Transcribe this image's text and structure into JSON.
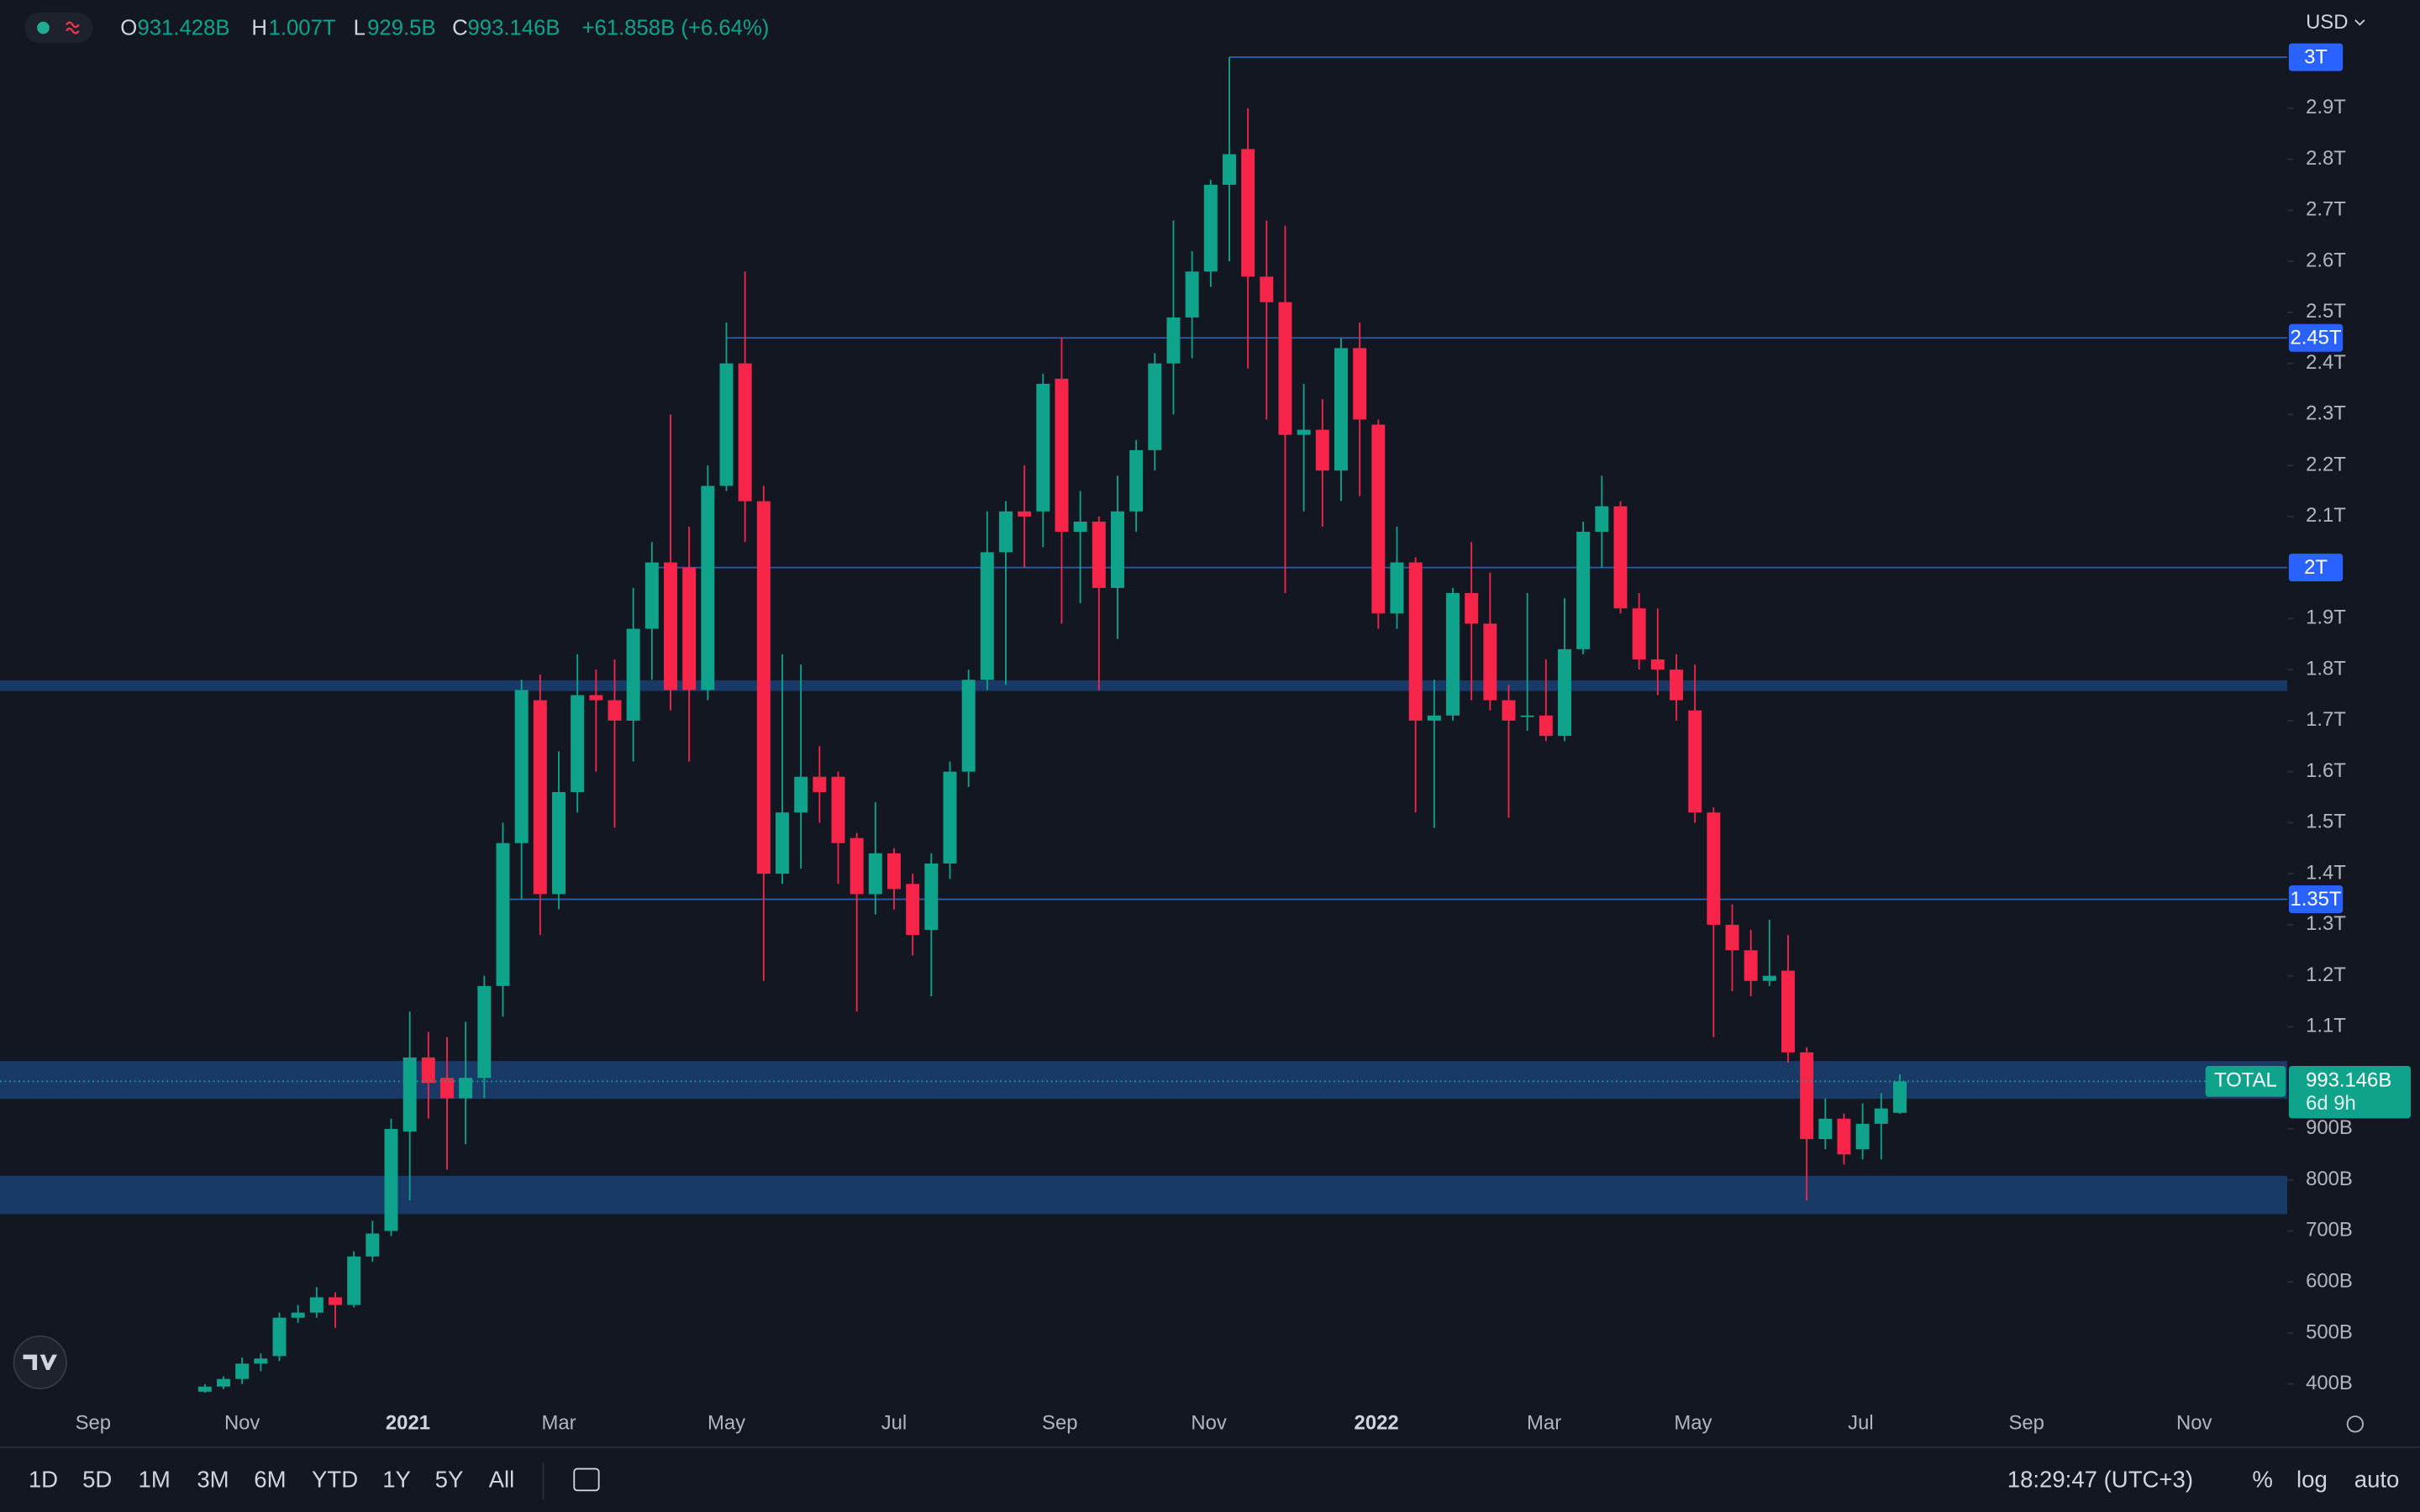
{
  "chart_data": {
    "type": "candlestick",
    "symbol": "TOTAL",
    "currency": "USD",
    "countdown": "6d 9h",
    "header": {
      "open_key": "O",
      "open": "931.428B",
      "high_key": "H",
      "high": "1.007T",
      "low_key": "L",
      "low": "929.5B",
      "close_key": "C",
      "close": "993.146B",
      "change": "+61.858B (+6.64%)"
    },
    "up_color": "#0fa38b",
    "down_color": "#f7254a",
    "open": [
      385,
      395,
      410,
      440,
      455,
      530,
      540,
      570,
      555,
      650,
      700,
      895,
      1040,
      1000,
      960,
      1000,
      1180,
      1460,
      1740,
      1360,
      1560,
      1750,
      1740,
      1700,
      1880,
      2010,
      2000,
      1760,
      2160,
      2400,
      2130,
      1400,
      1520,
      1590,
      1590,
      1470,
      1360,
      1440,
      1380,
      1290,
      1420,
      1600,
      1780,
      2030,
      2110,
      2110,
      2370,
      2070,
      2090,
      1960,
      2110,
      2230,
      2400,
      2490,
      2580,
      2750,
      2820,
      2570,
      2520,
      2260,
      2270,
      2190,
      2430,
      2280,
      1910,
      2010,
      1700,
      1710,
      1950,
      1890,
      1740,
      1710,
      1710,
      1670,
      1840,
      2070,
      2120,
      1920,
      1820,
      1800,
      1720,
      1520,
      1300,
      1250,
      1190,
      1210,
      1050,
      880,
      920,
      860,
      910,
      931.428
    ],
    "high": [
      400,
      415,
      452,
      460,
      540,
      555,
      590,
      580,
      660,
      720,
      920,
      1130,
      1090,
      1080,
      1110,
      1200,
      1500,
      1780,
      1790,
      1640,
      1830,
      1800,
      1820,
      1960,
      2050,
      2300,
      2080,
      2200,
      2480,
      2580,
      2160,
      1830,
      1810,
      1650,
      1600,
      1480,
      1540,
      1450,
      1400,
      1440,
      1620,
      1800,
      2110,
      2130,
      2200,
      2380,
      2450,
      2150,
      2100,
      2180,
      2250,
      2420,
      2680,
      2620,
      2760,
      3000,
      2900,
      2680,
      2670,
      2360,
      2330,
      2450,
      2480,
      2290,
      2080,
      2020,
      1780,
      1960,
      2050,
      1990,
      1770,
      1950,
      1820,
      1940,
      2090,
      2180,
      2130,
      1950,
      1920,
      1830,
      1810,
      1530,
      1340,
      1290,
      1310,
      1280,
      1060,
      960,
      930,
      950,
      970,
      1007
    ],
    "low": [
      383,
      390,
      400,
      425,
      445,
      520,
      530,
      510,
      550,
      640,
      690,
      760,
      920,
      820,
      870,
      960,
      1120,
      1350,
      1280,
      1330,
      1520,
      1600,
      1490,
      1620,
      1780,
      1720,
      1620,
      1740,
      2150,
      2050,
      1190,
      1380,
      1410,
      1500,
      1380,
      1130,
      1320,
      1330,
      1240,
      1160,
      1390,
      1570,
      1760,
      1770,
      2000,
      2040,
      1890,
      1930,
      1760,
      1860,
      2070,
      2190,
      2300,
      2410,
      2550,
      2600,
      2390,
      2290,
      1950,
      2110,
      2080,
      2130,
      2140,
      1880,
      1880,
      1520,
      1490,
      1700,
      1740,
      1720,
      1510,
      1680,
      1660,
      1660,
      1830,
      2000,
      1910,
      1800,
      1750,
      1700,
      1500,
      1080,
      1170,
      1160,
      1180,
      1030,
      760,
      860,
      830,
      840,
      840,
      929.5
    ],
    "close": [
      395,
      410,
      440,
      450,
      530,
      540,
      570,
      555,
      650,
      695,
      900,
      1040,
      990,
      960,
      1000,
      1180,
      1460,
      1760,
      1360,
      1560,
      1750,
      1740,
      1700,
      1880,
      2010,
      1760,
      1760,
      2160,
      2400,
      2130,
      1400,
      1520,
      1590,
      1560,
      1460,
      1360,
      1440,
      1370,
      1280,
      1420,
      1600,
      1780,
      2030,
      2110,
      2100,
      2360,
      2070,
      2090,
      1960,
      2110,
      2230,
      2400,
      2490,
      2580,
      2750,
      2810,
      2570,
      2520,
      2260,
      2270,
      2190,
      2430,
      2290,
      1910,
      2010,
      1700,
      1710,
      1950,
      1890,
      1740,
      1700,
      1710,
      1670,
      1840,
      2070,
      2120,
      1920,
      1820,
      1800,
      1740,
      1520,
      1300,
      1250,
      1190,
      1200,
      1050,
      880,
      920,
      850,
      910,
      940,
      993.146
    ],
    "levels": [
      {
        "value": 3000,
        "label": "3T"
      },
      {
        "value": 2450,
        "label": "2.45T"
      },
      {
        "value": 2000,
        "label": "2T"
      },
      {
        "value": 1350,
        "label": "1.35T"
      }
    ],
    "level_color": "#2b5ea8",
    "zones": [
      [
        1758,
        1779
      ],
      [
        959,
        1033
      ],
      [
        733,
        808
      ]
    ],
    "zone_color": "#1b3d6e",
    "ylim": [
      370,
      3100
    ],
    "yticks": [
      {
        "value": 2900,
        "label": "2.9T"
      },
      {
        "value": 2800,
        "label": "2.8T"
      },
      {
        "value": 2700,
        "label": "2.7T"
      },
      {
        "value": 2600,
        "label": "2.6T"
      },
      {
        "value": 2500,
        "label": "2.5T"
      },
      {
        "value": 2400,
        "label": "2.4T"
      },
      {
        "value": 2300,
        "label": "2.3T"
      },
      {
        "value": 2200,
        "label": "2.2T"
      },
      {
        "value": 2100,
        "label": "2.1T"
      },
      {
        "value": 1900,
        "label": "1.9T"
      },
      {
        "value": 1800,
        "label": "1.8T"
      },
      {
        "value": 1700,
        "label": "1.7T"
      },
      {
        "value": 1600,
        "label": "1.6T"
      },
      {
        "value": 1500,
        "label": "1.5T"
      },
      {
        "value": 1400,
        "label": "1.4T"
      },
      {
        "value": 1300,
        "label": "1.3T"
      },
      {
        "value": 1200,
        "label": "1.2T"
      },
      {
        "value": 1100,
        "label": "1.1T"
      },
      {
        "value": 900,
        "label": "900B"
      },
      {
        "value": 800,
        "label": "800B"
      },
      {
        "value": 700,
        "label": "700B"
      },
      {
        "value": 600,
        "label": "600B"
      },
      {
        "value": 500,
        "label": "500B"
      },
      {
        "value": 400,
        "label": "400B"
      }
    ],
    "xlim": [
      -11,
      111.8
    ],
    "xticks": [
      {
        "value": -6,
        "label": "Sep"
      },
      {
        "value": 2,
        "label": "Nov"
      },
      {
        "value": 10.9,
        "label": "2021"
      },
      {
        "value": 19,
        "label": "Mar"
      },
      {
        "value": 28,
        "label": "May"
      },
      {
        "value": 37,
        "label": "Jul"
      },
      {
        "value": 45.9,
        "label": "Sep"
      },
      {
        "value": 53.9,
        "label": "Nov"
      },
      {
        "value": 62.9,
        "label": "2022"
      },
      {
        "value": 71.9,
        "label": "Mar"
      },
      {
        "value": 79.9,
        "label": "May"
      },
      {
        "value": 88.9,
        "label": "Jul"
      },
      {
        "value": 97.8,
        "label": "Sep"
      },
      {
        "value": 106.8,
        "label": "Nov"
      }
    ],
    "bold_xticks": [
      "2021",
      "2022"
    ]
  },
  "toolbar": {
    "ranges": [
      "1D",
      "5D",
      "1M",
      "3M",
      "6M",
      "YTD",
      "1Y",
      "5Y",
      "All"
    ],
    "time": "18:29:47 (UTC+3)",
    "options": [
      "%",
      "log",
      "auto"
    ]
  }
}
